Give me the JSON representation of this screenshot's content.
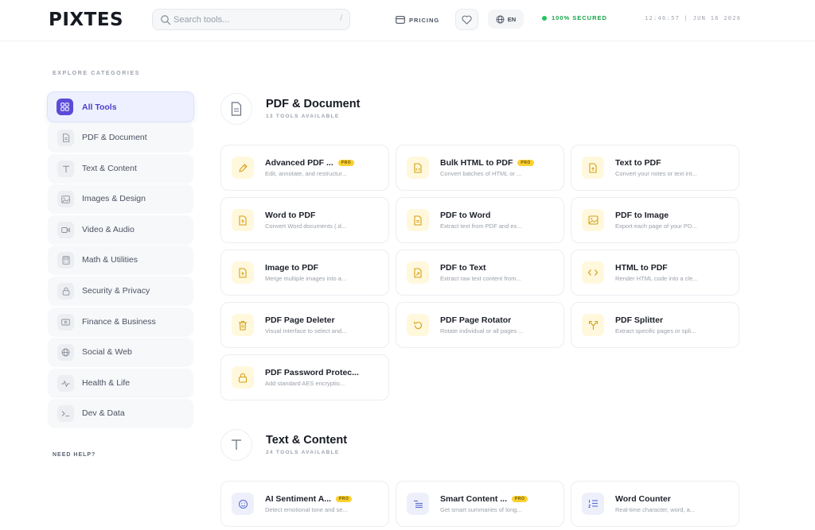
{
  "header": {
    "logo": "PIXTES",
    "search_placeholder": "Search tools...",
    "search_shortcut": "/",
    "pricing": "PRICING",
    "lang": "EN",
    "secured": "100% SECURED",
    "clock": "12:46:57 | JUN 16 2026"
  },
  "sidebar": {
    "heading": "EXPLORE CATEGORIES",
    "items": [
      {
        "label": "All Tools",
        "icon": "grid-icon"
      },
      {
        "label": "PDF & Document",
        "icon": "document-icon"
      },
      {
        "label": "Text & Content",
        "icon": "text-icon"
      },
      {
        "label": "Images & Design",
        "icon": "image-icon"
      },
      {
        "label": "Video & Audio",
        "icon": "video-icon"
      },
      {
        "label": "Math & Utilities",
        "icon": "calculator-icon"
      },
      {
        "label": "Security & Privacy",
        "icon": "lock-icon"
      },
      {
        "label": "Finance & Business",
        "icon": "wallet-icon"
      },
      {
        "label": "Social & Web",
        "icon": "globe-icon"
      },
      {
        "label": "Health & Life",
        "icon": "pulse-icon"
      },
      {
        "label": "Dev & Data",
        "icon": "terminal-icon"
      }
    ],
    "need_help": "NEED HELP?"
  },
  "sections": [
    {
      "title": "PDF & Document",
      "subtitle": "13 TOOLS AVAILABLE",
      "icon": "document-icon",
      "tools": [
        {
          "title": "Advanced PDF ...",
          "pro": "PRO",
          "desc": "Edit, annotate, and restructur...",
          "icon": "pen-icon"
        },
        {
          "title": "Bulk HTML to PDF",
          "pro": "PRO",
          "desc": "Convert batches of HTML or ...",
          "icon": "code-file-icon"
        },
        {
          "title": "Text to PDF",
          "pro": "",
          "desc": "Convert your notes or text int...",
          "icon": "upload-file-icon"
        },
        {
          "title": "Word to PDF",
          "pro": "",
          "desc": "Convert Word documents (.d...",
          "icon": "upload-file-icon"
        },
        {
          "title": "PDF to Word",
          "pro": "",
          "desc": "Extract text from PDF and ex...",
          "icon": "file-text-icon"
        },
        {
          "title": "PDF to Image",
          "pro": "",
          "desc": "Export each page of your PD...",
          "icon": "image-icon"
        },
        {
          "title": "Image to PDF",
          "pro": "",
          "desc": "Merge multiple images into a...",
          "icon": "upload-file-icon"
        },
        {
          "title": "PDF to Text",
          "pro": "",
          "desc": "Extract raw text content from...",
          "icon": "export-file-icon"
        },
        {
          "title": "HTML to PDF",
          "pro": "",
          "desc": "Render HTML code into a cle...",
          "icon": "code-icon"
        },
        {
          "title": "PDF Page Deleter",
          "pro": "",
          "desc": "Visual Interface to select and...",
          "icon": "trash-icon"
        },
        {
          "title": "PDF Page Rotator",
          "pro": "",
          "desc": "Rotate individual or all pages ...",
          "icon": "rotate-icon"
        },
        {
          "title": "PDF Splitter",
          "pro": "",
          "desc": "Extract specific pages or spli...",
          "icon": "split-icon"
        },
        {
          "title": "PDF Password Protec...",
          "pro": "",
          "desc": "Add standard AES encryptio...",
          "icon": "lock-icon"
        }
      ]
    },
    {
      "title": "Text & Content",
      "subtitle": "24 TOOLS AVAILABLE",
      "icon": "text-icon",
      "tools": [
        {
          "title": "AI Sentiment A...",
          "pro": "PRO",
          "desc": "Detect emotional tone and se...",
          "icon": "smile-icon"
        },
        {
          "title": "Smart Content ...",
          "pro": "PRO",
          "desc": "Get smart summaries of long...",
          "icon": "list-icon"
        },
        {
          "title": "Word Counter",
          "pro": "",
          "desc": "Real-time character, word, a...",
          "icon": "list-ordered-icon"
        }
      ]
    }
  ]
}
